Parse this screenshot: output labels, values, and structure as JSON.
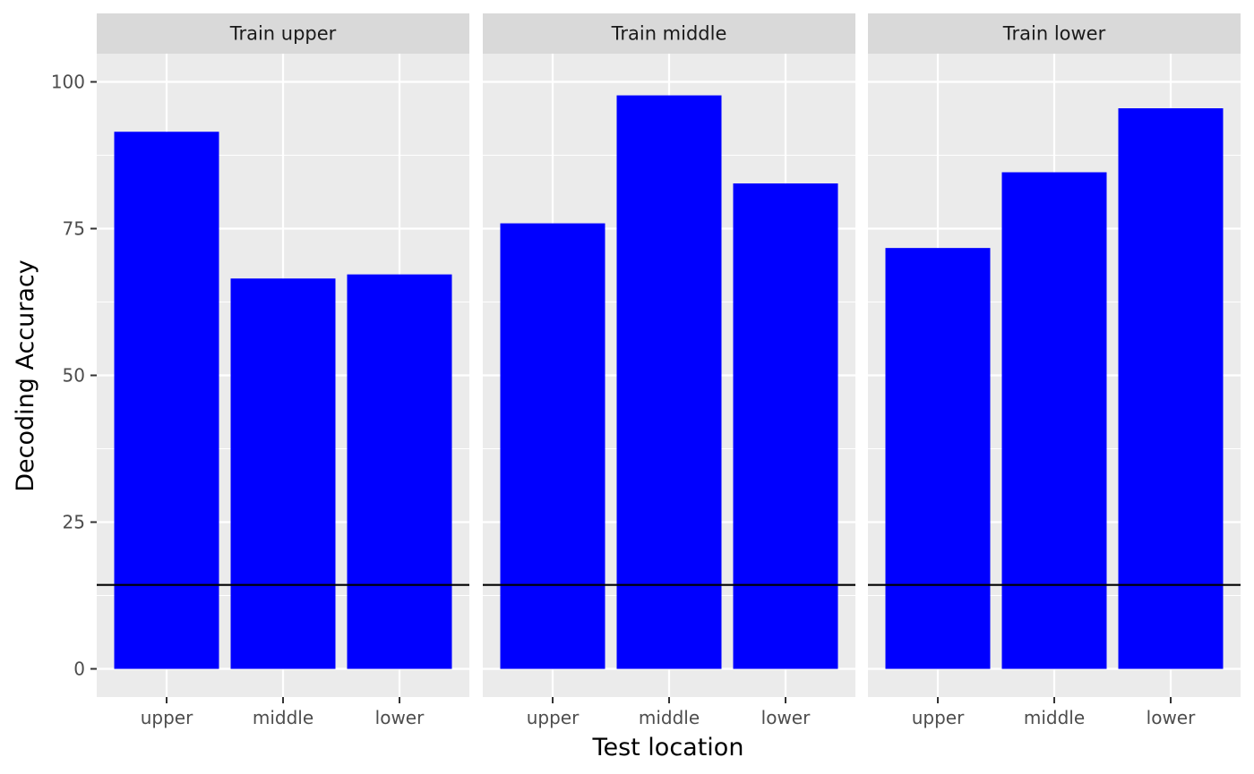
{
  "chart_data": {
    "type": "bar",
    "facet_by": "Train location",
    "panels": [
      {
        "title": "Train upper",
        "categories": [
          "upper",
          "middle",
          "lower"
        ],
        "values": [
          91.5,
          66.5,
          67.2
        ]
      },
      {
        "title": "Train middle",
        "categories": [
          "upper",
          "middle",
          "lower"
        ],
        "values": [
          75.9,
          97.7,
          82.7
        ]
      },
      {
        "title": "Train lower",
        "categories": [
          "upper",
          "middle",
          "lower"
        ],
        "values": [
          71.7,
          84.6,
          95.5
        ]
      }
    ],
    "xlabel": "Test location",
    "ylabel": "Decoding Accuracy",
    "ylim": [
      -4.8,
      104.8
    ],
    "yticks": [
      0,
      25,
      50,
      75,
      100
    ],
    "reference_line": 14.3,
    "grid": true,
    "colors": {
      "bar": "#0000ff",
      "panel_bg": "#ebebeb",
      "strip_bg": "#d9d9d9",
      "grid": "#ffffff",
      "reference_line": "#000000"
    }
  }
}
